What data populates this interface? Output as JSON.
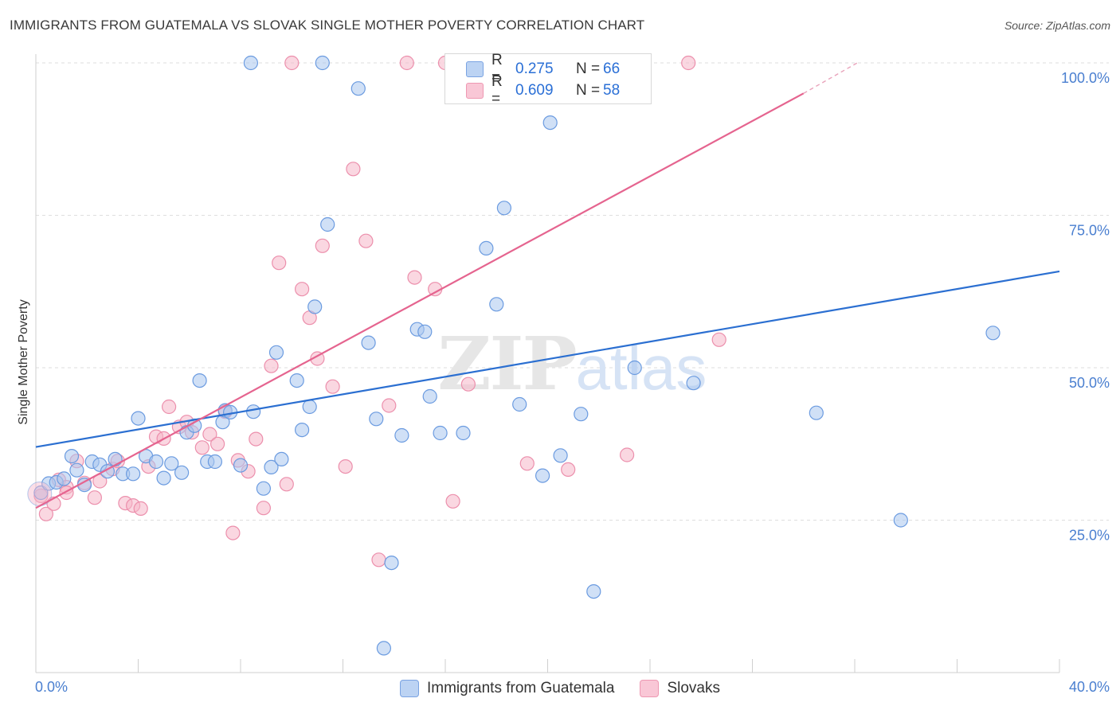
{
  "title": "IMMIGRANTS FROM GUATEMALA VS SLOVAK SINGLE MOTHER POVERTY CORRELATION CHART",
  "source": "Source: ZipAtlas.com",
  "legend_top": {
    "rows": [
      {
        "r_label": "R =",
        "r_value": "0.275",
        "n_label": "N =",
        "n_value": "66"
      },
      {
        "r_label": "R =",
        "r_value": "0.609",
        "n_label": "N =",
        "n_value": "58"
      }
    ]
  },
  "legend_bottom": {
    "items": [
      {
        "label": "Immigrants from Guatemala"
      },
      {
        "label": "Slovaks"
      }
    ]
  },
  "colors": {
    "blue_fill": "#a9c6ef",
    "blue_stroke": "#6b9be0",
    "blue_line": "#2b6fd1",
    "pink_fill": "#f6b6c9",
    "pink_stroke": "#ec8fac",
    "pink_line": "#e5648f",
    "tick_text": "#4a7fd0",
    "grid": "#dedede"
  },
  "chart_data": {
    "type": "scatter",
    "title": "IMMIGRANTS FROM GUATEMALA VS SLOVAK SINGLE MOTHER POVERTY CORRELATION CHART",
    "xlabel": "",
    "ylabel": "Single Mother Poverty",
    "xlim": [
      0,
      40
    ],
    "ylim": [
      0,
      100
    ],
    "x_tick_labels": [
      "0.0%",
      "40.0%"
    ],
    "y_tick_labels": [
      "100.0%",
      "75.0%",
      "50.0%",
      "25.0%"
    ],
    "y_ticks": [
      100,
      75,
      50,
      25
    ],
    "grid": true,
    "legend": "top-center",
    "watermark": "ZIPatlas",
    "series": [
      {
        "name": "Immigrants from Guatemala",
        "color": "#a9c6ef",
        "trend": {
          "x": [
            0,
            40
          ],
          "y": [
            37.0,
            65.8
          ]
        },
        "points": [
          [
            0.2,
            29.5
          ],
          [
            0.5,
            31.0
          ],
          [
            0.8,
            31.2
          ],
          [
            1.1,
            31.8
          ],
          [
            1.4,
            35.5
          ],
          [
            1.6,
            33.2
          ],
          [
            1.9,
            30.8
          ],
          [
            2.2,
            34.6
          ],
          [
            2.5,
            34.1
          ],
          [
            2.8,
            33.0
          ],
          [
            3.1,
            35.0
          ],
          [
            3.4,
            32.6
          ],
          [
            3.8,
            32.6
          ],
          [
            4.0,
            41.7
          ],
          [
            4.3,
            35.5
          ],
          [
            4.7,
            34.6
          ],
          [
            5.0,
            31.9
          ],
          [
            5.3,
            34.3
          ],
          [
            5.7,
            32.8
          ],
          [
            5.9,
            39.4
          ],
          [
            6.2,
            40.5
          ],
          [
            6.4,
            47.9
          ],
          [
            6.7,
            34.6
          ],
          [
            7.0,
            34.6
          ],
          [
            7.3,
            41.1
          ],
          [
            7.4,
            43.0
          ],
          [
            7.6,
            42.7
          ],
          [
            8.0,
            34.0
          ],
          [
            8.5,
            42.8
          ],
          [
            8.9,
            30.2
          ],
          [
            9.2,
            33.7
          ],
          [
            9.4,
            52.5
          ],
          [
            9.6,
            35.0
          ],
          [
            10.2,
            47.9
          ],
          [
            10.4,
            39.8
          ],
          [
            10.7,
            43.6
          ],
          [
            10.9,
            60.0
          ],
          [
            11.4,
            73.5
          ],
          [
            12.6,
            95.8
          ],
          [
            13.0,
            54.1
          ],
          [
            13.3,
            41.6
          ],
          [
            13.6,
            4.0
          ],
          [
            13.9,
            18.0
          ],
          [
            14.3,
            38.9
          ],
          [
            14.9,
            56.3
          ],
          [
            15.2,
            55.9
          ],
          [
            15.4,
            45.3
          ],
          [
            15.8,
            39.3
          ],
          [
            16.7,
            39.3
          ],
          [
            17.6,
            69.6
          ],
          [
            18.0,
            60.4
          ],
          [
            18.3,
            76.2
          ],
          [
            18.9,
            44.0
          ],
          [
            19.8,
            32.3
          ],
          [
            20.1,
            90.2
          ],
          [
            20.5,
            35.6
          ],
          [
            21.3,
            42.4
          ],
          [
            21.8,
            13.3
          ],
          [
            23.4,
            50.0
          ],
          [
            25.7,
            47.5
          ],
          [
            30.5,
            42.6
          ],
          [
            33.8,
            25.0
          ],
          [
            37.4,
            55.7
          ],
          [
            8.4,
            100.0
          ],
          [
            11.2,
            100.0
          ],
          [
            19.7,
            100.0
          ]
        ]
      },
      {
        "name": "Slovaks",
        "color": "#f6b6c9",
        "trend": {
          "x": [
            0,
            30
          ],
          "y": [
            27.0,
            95.0
          ]
        },
        "trend_dashed": {
          "x": [
            30,
            32.1
          ],
          "y": [
            95.0,
            100.0
          ]
        },
        "points": [
          [
            0.2,
            29.0
          ],
          [
            0.4,
            26.0
          ],
          [
            0.7,
            27.7
          ],
          [
            0.9,
            31.6
          ],
          [
            1.2,
            30.4
          ],
          [
            1.6,
            34.7
          ],
          [
            1.9,
            31.1
          ],
          [
            2.3,
            28.7
          ],
          [
            2.5,
            31.4
          ],
          [
            3.0,
            33.4
          ],
          [
            3.2,
            34.7
          ],
          [
            3.5,
            27.8
          ],
          [
            3.8,
            27.4
          ],
          [
            4.1,
            26.9
          ],
          [
            4.4,
            33.8
          ],
          [
            4.7,
            38.7
          ],
          [
            5.0,
            38.4
          ],
          [
            5.2,
            43.6
          ],
          [
            5.6,
            40.3
          ],
          [
            5.9,
            41.1
          ],
          [
            6.1,
            39.4
          ],
          [
            6.5,
            36.9
          ],
          [
            6.8,
            39.1
          ],
          [
            7.1,
            37.5
          ],
          [
            7.4,
            42.8
          ],
          [
            7.7,
            22.9
          ],
          [
            7.9,
            34.8
          ],
          [
            8.3,
            33.0
          ],
          [
            8.6,
            38.3
          ],
          [
            8.9,
            27.0
          ],
          [
            9.2,
            50.3
          ],
          [
            9.5,
            67.2
          ],
          [
            9.8,
            30.9
          ],
          [
            10.4,
            62.9
          ],
          [
            10.7,
            58.2
          ],
          [
            11.0,
            51.5
          ],
          [
            11.2,
            70.0
          ],
          [
            11.6,
            46.9
          ],
          [
            12.1,
            33.8
          ],
          [
            12.4,
            82.6
          ],
          [
            12.9,
            70.8
          ],
          [
            13.4,
            18.5
          ],
          [
            13.8,
            43.8
          ],
          [
            14.8,
            64.8
          ],
          [
            15.6,
            62.9
          ],
          [
            16.3,
            28.1
          ],
          [
            16.9,
            47.3
          ],
          [
            19.2,
            34.3
          ],
          [
            20.8,
            33.3
          ],
          [
            23.1,
            35.7
          ],
          [
            26.7,
            54.6
          ],
          [
            1.2,
            29.5
          ],
          [
            10.0,
            100.0
          ],
          [
            14.5,
            100.0
          ],
          [
            16.0,
            100.0
          ],
          [
            17.0,
            100.0
          ],
          [
            20.6,
            100.0
          ],
          [
            25.5,
            100.0
          ]
        ]
      }
    ]
  }
}
